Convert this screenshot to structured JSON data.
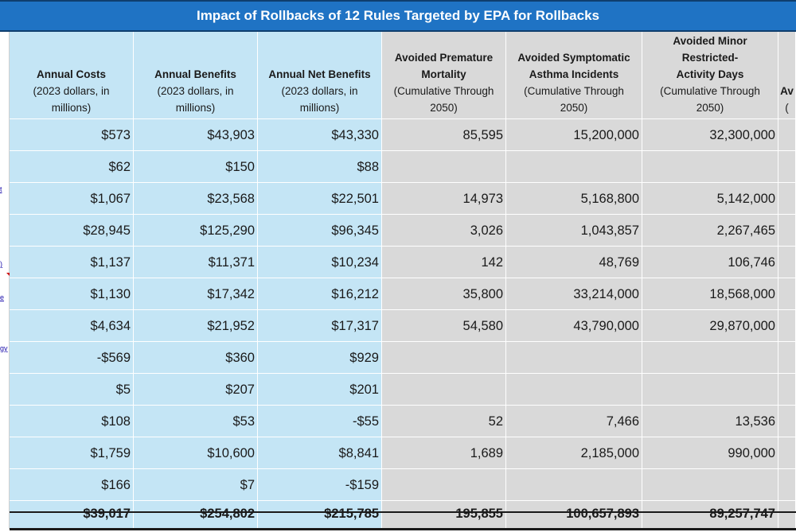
{
  "title": "Impact of Rollbacks of 12 Rules Targeted by EPA for Rollbacks",
  "left_fragments": [
    "t",
    ")",
    "e",
    "gy"
  ],
  "columns": [
    {
      "header_bold": [
        "Annual Costs"
      ],
      "header_normal": [
        "(2023 dollars, in",
        "millions)"
      ],
      "shade": "blue",
      "values": [
        "$573",
        "$62",
        "$1,067",
        "$28,945",
        "$1,137",
        "$1,130",
        "$4,634",
        "-$569",
        "$5",
        "$108",
        "$1,759",
        "$166"
      ],
      "total": "$39,017"
    },
    {
      "header_bold": [
        "Annual Benefits"
      ],
      "header_normal": [
        "(2023 dollars, in",
        "millions)"
      ],
      "shade": "blue",
      "values": [
        "$43,903",
        "$150",
        "$23,568",
        "$125,290",
        "$11,371",
        "$17,342",
        "$21,952",
        "$360",
        "$207",
        "$53",
        "$10,600",
        "$7"
      ],
      "total": "$254,802"
    },
    {
      "header_bold": [
        "Annual Net Benefits"
      ],
      "header_normal": [
        "(2023 dollars, in",
        "millions)"
      ],
      "shade": "blue",
      "values": [
        "$43,330",
        "$88",
        "$22,501",
        "$96,345",
        "$10,234",
        "$16,212",
        "$17,317",
        "$929",
        "$201",
        "-$55",
        "$8,841",
        "-$159"
      ],
      "total": "$215,785"
    },
    {
      "header_bold": [
        "Avoided Premature",
        "Mortality"
      ],
      "header_normal": [
        "(Cumulative Through",
        "2050)"
      ],
      "shade": "gray",
      "values": [
        "85,595",
        "",
        "14,973",
        "3,026",
        "142",
        "35,800",
        "54,580",
        "",
        "",
        "52",
        "1,689",
        ""
      ],
      "total": "195,855"
    },
    {
      "header_bold": [
        "Avoided Symptomatic",
        "Asthma Incidents"
      ],
      "header_normal": [
        "(Cumulative Through",
        "2050)"
      ],
      "shade": "gray",
      "values": [
        "15,200,000",
        "",
        "5,168,800",
        "1,043,857",
        "48,769",
        "33,214,000",
        "43,790,000",
        "",
        "",
        "7,466",
        "2,185,000",
        ""
      ],
      "total": "100,657,893"
    },
    {
      "header_bold": [
        "Avoided Minor",
        "Restricted-",
        "Activity Days"
      ],
      "header_normal": [
        "(Cumulative Through",
        "2050)"
      ],
      "shade": "gray",
      "values": [
        "32,300,000",
        "",
        "5,142,000",
        "2,267,465",
        "106,746",
        "18,568,000",
        "29,870,000",
        "",
        "",
        "13,536",
        "990,000",
        ""
      ],
      "total": "89,257,747"
    },
    {
      "header_bold": [
        "Av"
      ],
      "header_normal": [
        "("
      ],
      "shade": "gray",
      "values": [
        "",
        "",
        "",
        "",
        "",
        "",
        "",
        "",
        "",
        "",
        "",
        ""
      ],
      "total": ""
    }
  ]
}
